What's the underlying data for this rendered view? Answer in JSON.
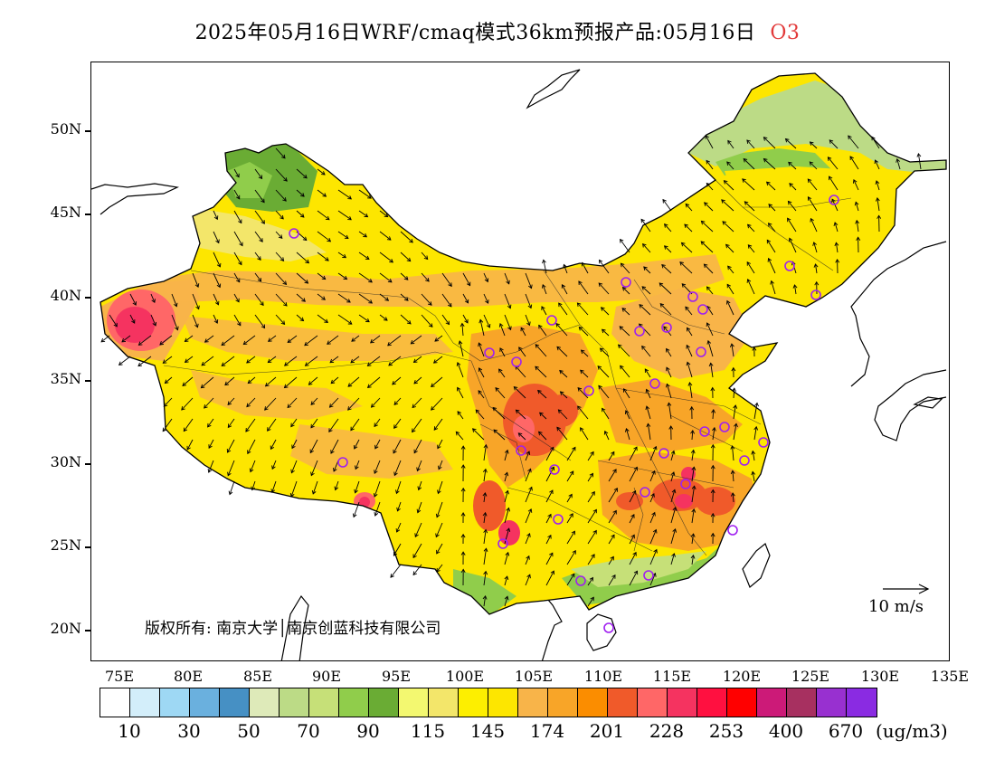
{
  "title": {
    "text": "2025年05月16日WRF/cmaq模式36km预报产品:05月16日",
    "pollutant": "O3"
  },
  "map": {
    "lat_labels": [
      "50N",
      "45N",
      "40N",
      "35N",
      "30N",
      "25N",
      "20N"
    ],
    "lon_labels": [
      "75E",
      "80E",
      "85E",
      "90E",
      "95E",
      "100E",
      "105E",
      "110E",
      "115E",
      "120E",
      "125E",
      "130E",
      "135E"
    ],
    "copyright": "版权所有: 南京大学│南京创蓝科技有限公司",
    "wind_reference": "10 m/s",
    "dominant_colors": {
      "moderate": "#fde600",
      "elevated": "#f5a42c",
      "high": "#f2594b",
      "low_north": "#c6e078",
      "station_marker": "#a020f0"
    }
  },
  "colorbar": {
    "colors": [
      "#ffffff",
      "#d3eefa",
      "#9ed8f4",
      "#6ab0de",
      "#4690c4",
      "#deeab9",
      "#bcdb86",
      "#c6e078",
      "#90cd4b",
      "#6aac34",
      "#f3f870",
      "#f3e66a",
      "#fdef00",
      "#fde600",
      "#f8b449",
      "#f8a528",
      "#fb8d00",
      "#f05a2a",
      "#ff6767",
      "#f53360",
      "#ff1040",
      "#ff0000",
      "#cc1a78",
      "#a73060",
      "#9830d0",
      "#8a2be2"
    ],
    "labels": [
      "10",
      "30",
      "50",
      "70",
      "90",
      "115",
      "145",
      "174",
      "201",
      "228",
      "253",
      "400",
      "670"
    ],
    "unit": "(ug/m3)"
  }
}
